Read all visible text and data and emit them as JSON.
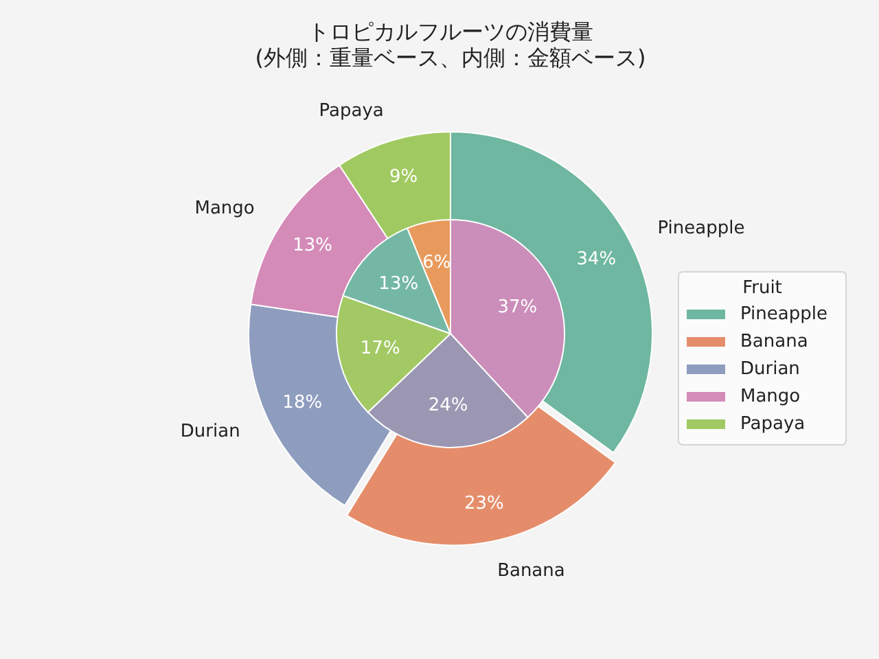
{
  "chart_data": {
    "type": "pie",
    "title": "トロピカルフルーツの消費量",
    "subtitle": "(外側：重量ベース、内側：金額ベース)",
    "categories": [
      "Pineapple",
      "Banana",
      "Durian",
      "Mango",
      "Papaya"
    ],
    "series": [
      {
        "values": [
          34,
          23,
          18,
          13,
          9
        ],
        "colors": [
          "#6fb7a0",
          "#e58d6b",
          "#8e9cbe",
          "#d48bb8",
          "#a1c961"
        ],
        "value_labels": [
          "34%",
          "23%",
          "18%",
          "13%",
          "9%"
        ]
      },
      {
        "values": [
          13,
          6,
          24,
          37,
          17
        ],
        "colors": [
          "#74b7a5",
          "#e89a5c",
          "#9b97b3",
          "#cb8db9",
          "#a2c964"
        ],
        "value_labels": [
          "13%",
          "6%",
          "24%",
          "37%",
          "17%"
        ]
      }
    ],
    "legend": "right",
    "legend_title": "Fruit"
  }
}
